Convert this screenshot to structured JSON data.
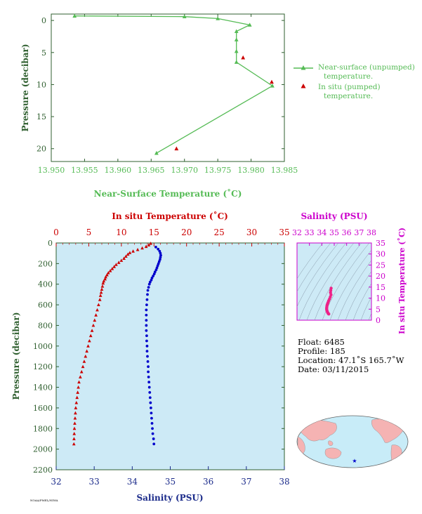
{
  "chart_data": [
    {
      "type": "line",
      "title": "",
      "xlabel": "Near-Surface Temperature (˚C)",
      "ylabel": "Pressure (decibar)",
      "xlim": [
        13.95,
        13.985
      ],
      "ylim": [
        22,
        -1
      ],
      "xticks": [
        "13.950",
        "13.955",
        "13.960",
        "13.965",
        "13.970",
        "13.975",
        "13.980",
        "13.985"
      ],
      "yticks": [
        "0",
        "5",
        "10",
        "15",
        "20"
      ],
      "legend_position": "right",
      "series": [
        {
          "name": "Near-surface (unpumped) temperature.",
          "color": "#55bb55",
          "points": [
            [
              13.9535,
              -0.7
            ],
            [
              13.97,
              -0.6
            ],
            [
              13.975,
              -0.3
            ],
            [
              13.9798,
              0.7
            ],
            [
              13.9778,
              1.7
            ],
            [
              13.9778,
              3.0
            ],
            [
              13.9778,
              4.8
            ],
            [
              13.9778,
              6.5
            ],
            [
              13.9832,
              10.2
            ],
            [
              13.9658,
              20.7
            ]
          ]
        },
        {
          "name": "In situ (pumped) temperature.",
          "color": "#cc0000",
          "points": [
            [
              13.9788,
              5.8
            ],
            [
              13.9831,
              9.6
            ],
            [
              13.9688,
              20.0
            ]
          ]
        }
      ]
    },
    {
      "type": "scatter",
      "title": "",
      "xlabel": "Salinity (PSU)",
      "x2label": "In situ Temperature (˚C)",
      "ylabel": "Pressure (decibar)",
      "xlim": [
        32,
        38
      ],
      "x2lim": [
        0,
        35
      ],
      "ylim": [
        2200,
        0
      ],
      "xticks": [
        "32",
        "33",
        "34",
        "35",
        "36",
        "37",
        "38"
      ],
      "x2ticks": [
        "0",
        "5",
        "10",
        "15",
        "20",
        "25",
        "30",
        "35"
      ],
      "yticks": [
        "0",
        "200",
        "400",
        "600",
        "800",
        "1000",
        "1200",
        "1400",
        "1600",
        "1800",
        "2000",
        "2200"
      ],
      "series": [
        {
          "name": "In situ Temperature",
          "color": "#cc0000",
          "axis": "x2",
          "pressure": [
            5,
            20,
            35,
            50,
            65,
            80,
            95,
            110,
            130,
            150,
            170,
            190,
            210,
            230,
            250,
            270,
            290,
            310,
            330,
            350,
            370,
            390,
            420,
            450,
            480,
            510,
            550,
            600,
            650,
            700,
            750,
            800,
            850,
            900,
            950,
            1000,
            1050,
            1100,
            1150,
            1200,
            1250,
            1300,
            1350,
            1400,
            1450,
            1500,
            1550,
            1600,
            1650,
            1700,
            1750,
            1800,
            1850,
            1900,
            1950
          ],
          "temperature": [
            14.5,
            14.2,
            13.8,
            13.2,
            12.5,
            11.8,
            11.3,
            11.0,
            10.7,
            10.4,
            10.0,
            9.6,
            9.2,
            8.9,
            8.6,
            8.3,
            8.0,
            7.8,
            7.6,
            7.5,
            7.3,
            7.2,
            7.1,
            7.0,
            6.9,
            6.8,
            6.7,
            6.5,
            6.3,
            6.1,
            5.9,
            5.7,
            5.5,
            5.3,
            5.1,
            4.9,
            4.7,
            4.5,
            4.3,
            4.1,
            3.9,
            3.7,
            3.5,
            3.4,
            3.3,
            3.2,
            3.1,
            3.0,
            2.95,
            2.9,
            2.85,
            2.8,
            2.77,
            2.74,
            2.72
          ]
        },
        {
          "name": "Salinity",
          "color": "#0000cc",
          "axis": "x",
          "pressure": [
            40,
            60,
            80,
            100,
            120,
            140,
            160,
            180,
            200,
            220,
            240,
            260,
            280,
            300,
            320,
            340,
            360,
            380,
            400,
            430,
            460,
            500,
            550,
            600,
            650,
            700,
            750,
            800,
            850,
            900,
            950,
            1000,
            1050,
            1100,
            1150,
            1200,
            1250,
            1300,
            1350,
            1400,
            1450,
            1500,
            1550,
            1600,
            1650,
            1700,
            1750,
            1800,
            1850,
            1900,
            1950
          ],
          "salinity": [
            34.62,
            34.68,
            34.72,
            34.74,
            34.75,
            34.74,
            34.73,
            34.71,
            34.69,
            34.67,
            34.65,
            34.63,
            34.6,
            34.58,
            34.55,
            34.52,
            34.5,
            34.47,
            34.45,
            34.43,
            34.41,
            34.4,
            34.39,
            34.38,
            34.37,
            34.37,
            34.37,
            34.37,
            34.37,
            34.38,
            34.38,
            34.39,
            34.39,
            34.4,
            34.41,
            34.42,
            34.42,
            34.43,
            34.44,
            34.45,
            34.46,
            34.47,
            34.48,
            34.49,
            34.5,
            34.51,
            34.52,
            34.53,
            34.54,
            34.56,
            34.57
          ]
        }
      ]
    },
    {
      "type": "scatter",
      "title": "",
      "xlabel": "Salinity (PSU)",
      "ylabel": "In situ Temperature (˚C)",
      "xlim": [
        32,
        38
      ],
      "ylim": [
        0,
        35
      ],
      "xticks": [
        "32",
        "33",
        "34",
        "35",
        "36",
        "37",
        "38"
      ],
      "yticks": [
        "0",
        "5",
        "10",
        "15",
        "20",
        "25",
        "30",
        "35"
      ],
      "series": [
        {
          "name": "T-S",
          "color": "#ee2288",
          "points": [
            [
              34.75,
              14.5
            ],
            [
              34.72,
              13.5
            ],
            [
              34.7,
              12.5
            ],
            [
              34.74,
              11.5
            ],
            [
              34.68,
              10.5
            ],
            [
              34.62,
              9.6
            ],
            [
              34.55,
              8.8
            ],
            [
              34.5,
              8.0
            ],
            [
              34.46,
              7.4
            ],
            [
              34.43,
              6.9
            ],
            [
              34.41,
              6.4
            ],
            [
              34.4,
              5.9
            ],
            [
              34.39,
              5.4
            ],
            [
              34.39,
              4.9
            ],
            [
              34.41,
              4.4
            ],
            [
              34.44,
              3.9
            ],
            [
              34.48,
              3.4
            ],
            [
              34.52,
              3.0
            ],
            [
              34.56,
              2.8
            ]
          ]
        }
      ]
    }
  ],
  "info": {
    "float": "Float:  6485",
    "profile": "Profile:  185",
    "location": "Location:  47.1˚S  165.7˚W",
    "date": "Date:  03/11/2015"
  },
  "map": {
    "star": "★"
  },
  "footer": {
    "credit": "NOAA/PMEL/NIWA"
  }
}
